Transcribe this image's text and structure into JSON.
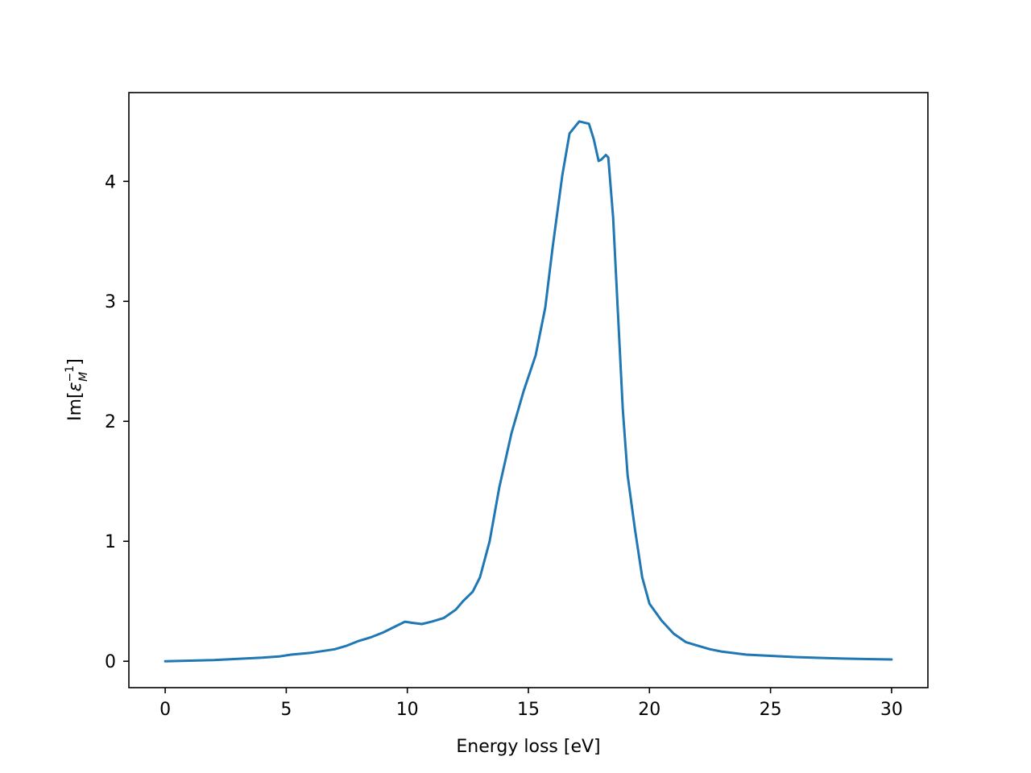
{
  "chart_data": {
    "type": "line",
    "title": "",
    "xlabel": "Energy loss [eV]",
    "ylabel": {
      "base": "Im[",
      "symbol": "ε",
      "superscript": "−1",
      "subscript": "M",
      "close": "]"
    },
    "xlim": [
      -1.5,
      31.5
    ],
    "ylim": [
      -0.22,
      4.74
    ],
    "xticks": [
      0,
      5,
      10,
      15,
      20,
      25,
      30
    ],
    "yticks": [
      0,
      1,
      2,
      3,
      4
    ],
    "grid": false,
    "legend": "none",
    "series": [
      {
        "color": "#1f77b4",
        "x": [
          0,
          1,
          2,
          3,
          4,
          4.7,
          5.2,
          6,
          7,
          7.5,
          8,
          8.5,
          9,
          9.5,
          9.9,
          10.2,
          10.6,
          11,
          11.5,
          12,
          12.3,
          12.7,
          13,
          13.4,
          13.8,
          14.3,
          14.8,
          15.3,
          15.7,
          16,
          16.4,
          16.7,
          17.1,
          17.5,
          17.7,
          17.9,
          18.0,
          18.2,
          18.3,
          18.5,
          18.7,
          18.9,
          19.1,
          19.4,
          19.7,
          20.0,
          20.5,
          21,
          21.5,
          22,
          22.5,
          23,
          24,
          25,
          26,
          27,
          28,
          29,
          30
        ],
        "y": [
          0,
          0.005,
          0.01,
          0.02,
          0.03,
          0.04,
          0.055,
          0.07,
          0.1,
          0.13,
          0.17,
          0.2,
          0.24,
          0.29,
          0.33,
          0.32,
          0.31,
          0.33,
          0.36,
          0.43,
          0.5,
          0.58,
          0.7,
          1.0,
          1.45,
          1.9,
          2.25,
          2.55,
          2.95,
          3.45,
          4.05,
          4.4,
          4.5,
          4.48,
          4.35,
          4.17,
          4.18,
          4.22,
          4.2,
          3.7,
          2.9,
          2.1,
          1.55,
          1.1,
          0.7,
          0.48,
          0.34,
          0.23,
          0.16,
          0.13,
          0.1,
          0.08,
          0.055,
          0.045,
          0.035,
          0.028,
          0.022,
          0.018,
          0.015
        ]
      }
    ]
  }
}
